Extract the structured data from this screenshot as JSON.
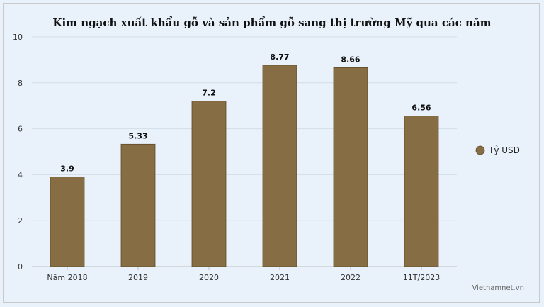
{
  "chart_data": {
    "type": "bar",
    "title": "Kim ngạch xuất khẩu gỗ và sản phẩm gỗ sang thị trường Mỹ qua các năm",
    "categories": [
      "Năm 2018",
      "2019",
      "2020",
      "2021",
      "2022",
      "11T/2023"
    ],
    "series": [
      {
        "name": "Tỷ USD",
        "values": [
          3.9,
          5.33,
          7.2,
          8.77,
          8.66,
          6.56
        ],
        "color": "#866d43"
      }
    ],
    "data_labels": [
      "3.9",
      "5.33",
      "7.2",
      "8.77",
      "8.66",
      "6.56"
    ],
    "ylim": [
      0,
      10
    ],
    "y_ticks": [
      0,
      2,
      4,
      6,
      8,
      10
    ],
    "y_tick_labels": [
      "0",
      "2",
      "4",
      "6",
      "8",
      "10"
    ],
    "grid": true,
    "legend_position": "right"
  },
  "source": "Vietnamnet.vn"
}
